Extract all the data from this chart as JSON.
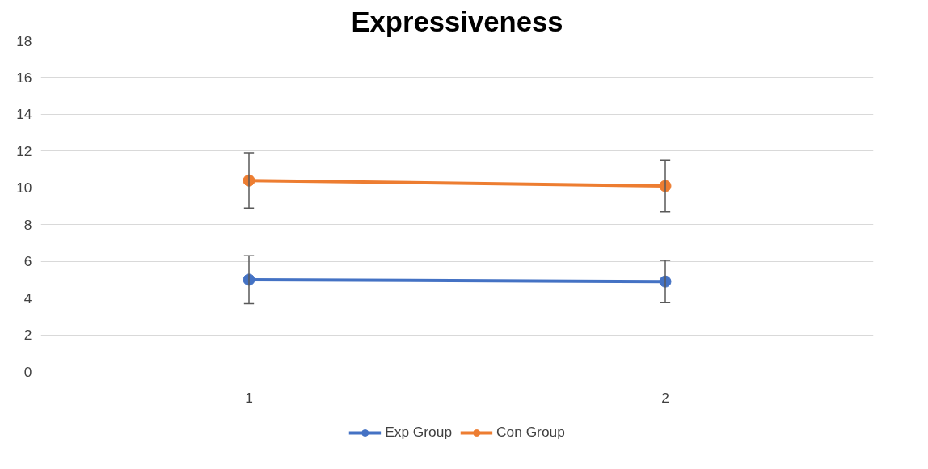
{
  "chart_data": {
    "type": "line",
    "title": "Expressiveness",
    "categories": [
      "1",
      "2"
    ],
    "series": [
      {
        "name": "Exp Group",
        "color": "#4472c4",
        "values": [
          5.0,
          4.9
        ],
        "errors": [
          1.3,
          1.15
        ]
      },
      {
        "name": "Con Group",
        "color": "#ed7d31",
        "values": [
          10.4,
          10.1
        ],
        "errors": [
          1.5,
          1.4
        ]
      }
    ],
    "ylim": [
      0,
      18
    ],
    "yticks": [
      0,
      2,
      4,
      6,
      8,
      10,
      12,
      14,
      16,
      18
    ],
    "grid": "y",
    "legend": "bottom",
    "marker": "circle",
    "line_style": "solid"
  }
}
